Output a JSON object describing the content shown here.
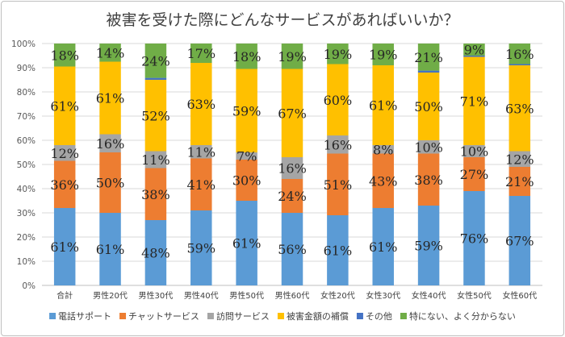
{
  "chart_data": {
    "type": "bar",
    "stacked": true,
    "title": "被害を受けた際にどんなサービスがあればいいか？",
    "categories": [
      "合計",
      "男性20代",
      "男性30代",
      "男性40代",
      "男性50代",
      "男性60代",
      "女性20代",
      "女性30代",
      "女性40代",
      "女性50代",
      "女性60代"
    ],
    "yticks": [
      "0%",
      "10%",
      "20%",
      "30%",
      "40%",
      "50%",
      "60%",
      "70%",
      "80%",
      "90%",
      "100%"
    ],
    "ylim": [
      0,
      100
    ],
    "grid": true,
    "legend_position": "bottom",
    "series": [
      {
        "name": "電話サポート",
        "color": "#5B9BD5",
        "values": [
          32,
          30,
          27,
          31,
          35,
          30,
          29,
          32,
          33,
          39,
          37
        ],
        "labels": [
          "61%",
          "61%",
          "48%",
          "59%",
          "61%",
          "56%",
          "61%",
          "61%",
          "59%",
          "76%",
          "67%"
        ]
      },
      {
        "name": "チャットサービス",
        "color": "#ED7D31",
        "values": [
          19.5,
          25,
          21.5,
          21.5,
          17,
          14,
          25.5,
          22.5,
          21.5,
          14,
          12
        ],
        "labels": [
          "36%",
          "50%",
          "38%",
          "41%",
          "30%",
          "24%",
          "51%",
          "43%",
          "38%",
          "27%",
          "21%"
        ]
      },
      {
        "name": "訪問サービス",
        "color": "#A5A5A5",
        "values": [
          6.5,
          7.5,
          7,
          5.5,
          3,
          9,
          7.5,
          3.5,
          5.5,
          5,
          6.5
        ],
        "labels": [
          "12%",
          "16%",
          "11%",
          "11%",
          "7%",
          "16%",
          "16%",
          "8%",
          "10%",
          "10%",
          "12%"
        ]
      },
      {
        "name": "被害金額の補償",
        "color": "#FFC000",
        "values": [
          32.5,
          30,
          29.5,
          34,
          34.5,
          36.5,
          29.5,
          33,
          28,
          36.5,
          35.5
        ],
        "labels": [
          "61%",
          "61%",
          "52%",
          "63%",
          "59%",
          "67%",
          "60%",
          "61%",
          "50%",
          "71%",
          "63%"
        ]
      },
      {
        "name": "その他",
        "color": "#4472C4",
        "values": [
          0,
          0,
          0.8,
          0,
          0,
          0,
          0,
          0,
          0.8,
          0.5,
          0.5
        ],
        "labels": [
          "",
          "",
          "",
          "",
          "",
          "",
          "",
          "",
          "",
          "",
          ""
        ]
      },
      {
        "name": "特にない、よく分からない",
        "color": "#70AD47",
        "values": [
          9.5,
          7.5,
          14.2,
          8,
          10.5,
          10.5,
          8.5,
          9,
          11.2,
          5,
          8.5
        ],
        "labels": [
          "18%",
          "14%",
          "24%",
          "17%",
          "18%",
          "19%",
          "19%",
          "19%",
          "21%",
          "9%",
          "16%"
        ]
      }
    ]
  }
}
